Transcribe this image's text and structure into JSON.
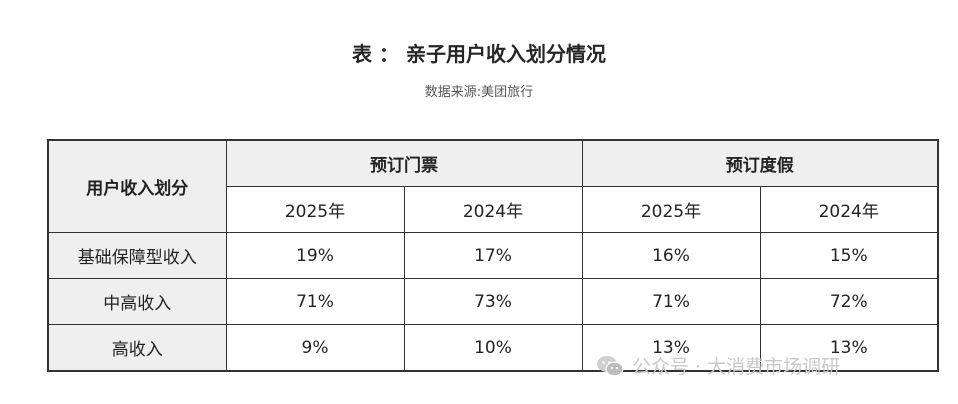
{
  "title": "表 ： 亲子用户收入划分情况",
  "source": "数据来源:美团旅行",
  "table": {
    "corner_header": "用户收入划分",
    "groups": [
      "预订门票",
      "预订度假"
    ],
    "years": [
      "2025年",
      "2024年",
      "2025年",
      "2024年"
    ],
    "rows": [
      {
        "label": "基础保障型收入",
        "values": [
          "19%",
          "17%",
          "16%",
          "15%"
        ]
      },
      {
        "label": "中高收入",
        "values": [
          "71%",
          "73%",
          "71%",
          "72%"
        ]
      },
      {
        "label": "高收入",
        "values": [
          "9%",
          "10%",
          "13%",
          "13%"
        ]
      }
    ]
  },
  "watermark": {
    "icon": "wechat-icon",
    "text": "公众号 · 大消费市场调研"
  }
}
